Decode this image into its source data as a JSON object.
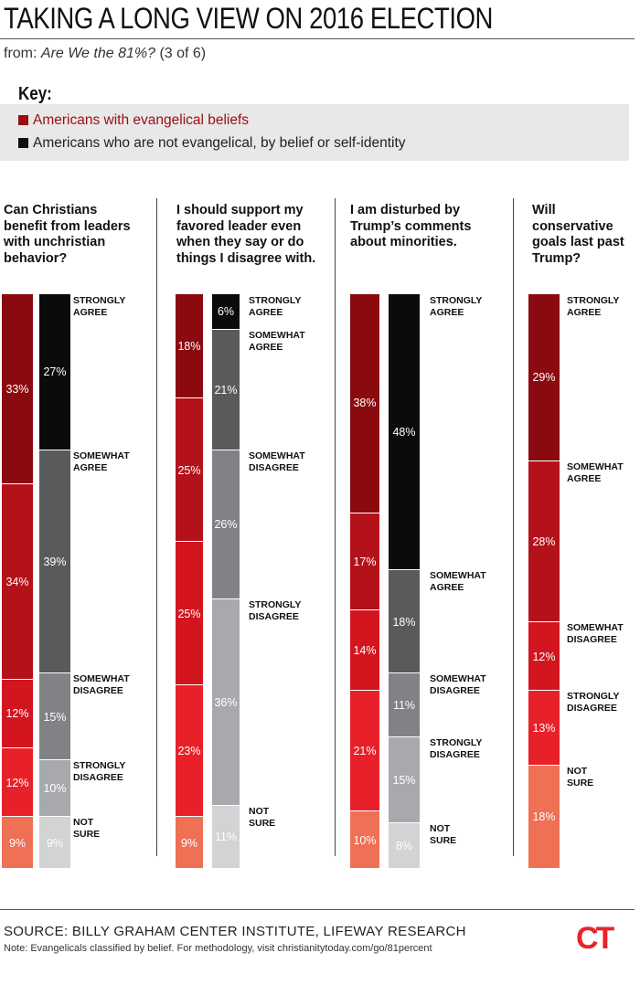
{
  "header": {
    "title": "TAKING A LONG VIEW ON 2016 ELECTION",
    "subtitle_prefix": "from: ",
    "subtitle_work": "Are We the 81%?",
    "subtitle_suffix": " (3 of 6)"
  },
  "key": {
    "title": "Key:",
    "evangelical": "Americans with evangelical beliefs",
    "non_evangelical": "Americans who are not evangelical, by belief or self-identity"
  },
  "colors": {
    "evangelical": [
      "#8b0a10",
      "#b4121b",
      "#d3151f",
      "#e8202a",
      "#ee7055"
    ],
    "non_evangelical": [
      "#0b0b0b",
      "#595a5c",
      "#818285",
      "#a8a9ac",
      "#d2d3d4"
    ]
  },
  "chart_data": [
    {
      "type": "bar",
      "stacked": true,
      "title": "Can Christians benefit from leaders with unchristian behavior?",
      "categories": [
        "STRONGLY AGREE",
        "SOMEWHAT AGREE",
        "SOMEWHAT DISAGREE",
        "STRONGLY DISAGREE",
        "NOT SURE"
      ],
      "series": [
        {
          "name": "Americans with evangelical beliefs",
          "values": [
            33,
            34,
            12,
            12,
            9
          ]
        },
        {
          "name": "Americans who are not evangelical, by belief or self-identity",
          "values": [
            27,
            39,
            15,
            10,
            9
          ]
        }
      ],
      "unit": "%"
    },
    {
      "type": "bar",
      "stacked": true,
      "title": "I should support my favored leader even when they say or do things I disagree with.",
      "categories": [
        "STRONGLY AGREE",
        "SOMEWHAT AGREE",
        "SOMEWHAT DISAGREE",
        "STRONGLY DISAGREE",
        "NOT SURE"
      ],
      "series": [
        {
          "name": "Americans with evangelical beliefs",
          "values": [
            18,
            25,
            25,
            23,
            9
          ]
        },
        {
          "name": "Americans who are not evangelical, by belief or self-identity",
          "values": [
            6,
            21,
            26,
            36,
            11
          ]
        }
      ],
      "unit": "%"
    },
    {
      "type": "bar",
      "stacked": true,
      "title": "I am disturbed by Trump’s comments about minorities.",
      "categories": [
        "STRONGLY AGREE",
        "SOMEWHAT AGREE",
        "SOMEWHAT DISAGREE",
        "STRONGLY DISAGREE",
        "NOT SURE"
      ],
      "series": [
        {
          "name": "Americans with evangelical beliefs",
          "values": [
            38,
            17,
            14,
            21,
            10
          ]
        },
        {
          "name": "Americans who are not evangelical, by belief or self-identity",
          "values": [
            48,
            18,
            11,
            15,
            8
          ]
        }
      ],
      "unit": "%"
    },
    {
      "type": "bar",
      "stacked": true,
      "title": "Will conservative goals last past Trump?",
      "categories": [
        "STRONGLY AGREE",
        "SOMEWHAT AGREE",
        "SOMEWHAT DISAGREE",
        "STRONGLY DISAGREE",
        "NOT SURE"
      ],
      "series": [
        {
          "name": "Americans with evangelical beliefs",
          "values": [
            29,
            28,
            12,
            13,
            18
          ]
        }
      ],
      "unit": "%"
    }
  ],
  "footer": {
    "source": "SOURCE: BILLY GRAHAM CENTER INSTITUTE, LIFEWAY RESEARCH",
    "note": "Note: Evangelicals classified by belief. For methodology, visit christianitytoday.com/go/81percent",
    "logo": "CT"
  }
}
